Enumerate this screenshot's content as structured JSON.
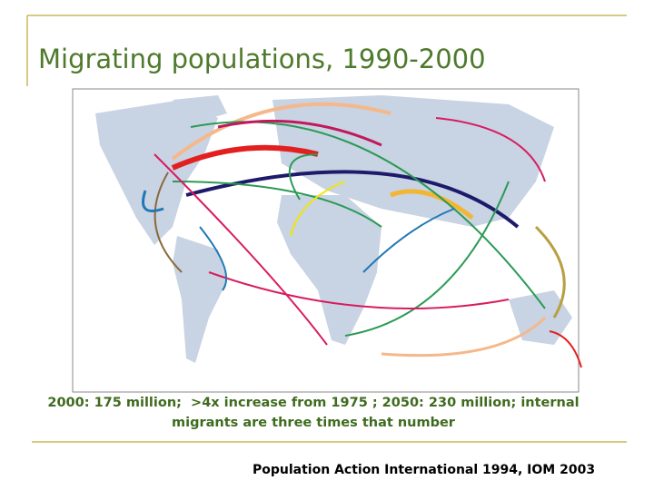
{
  "slide": {
    "title": "Migrating populations, 1990-2000",
    "caption_lines": [
      "2000: 175 million;  >4x increase from 1975 ; 2050: 230 million; internal",
      "migrants are three times that number"
    ],
    "source": "Population Action International 1994, IOM 2003"
  }
}
